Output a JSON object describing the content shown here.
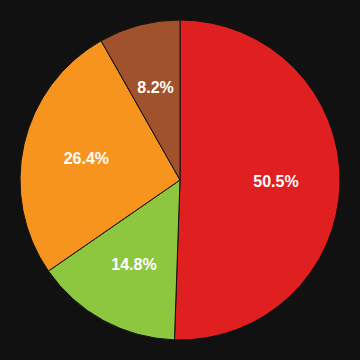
{
  "chart_data": {
    "type": "pie",
    "values": [
      50.5,
      14.8,
      26.4,
      8.2
    ],
    "value_labels": [
      "50.5%",
      "14.8%",
      "26.4%",
      "8.2%"
    ],
    "colors": [
      "#e02020",
      "#8dc63f",
      "#f7941d",
      "#a0522d"
    ],
    "data_labels": true
  }
}
